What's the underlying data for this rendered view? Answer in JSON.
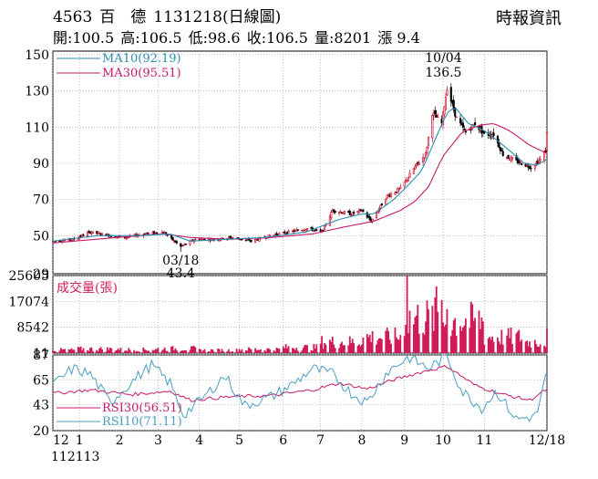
{
  "header": {
    "stock_code": "4563",
    "stock_name": "百　德",
    "chart_date_label": "1131218(日線圖)",
    "publisher": "時報資訊",
    "quote": {
      "open": "開:100.5",
      "high": "高:106.5",
      "low": "低:98.6",
      "close": "收:106.5",
      "volume": "量:8201",
      "change": "漲 9.4"
    }
  },
  "colors": {
    "up": "#d01030",
    "down": "#000000",
    "ma10": "#2a8fb0",
    "ma30": "#c8186a",
    "rsi30": "#c8186a",
    "rsi10": "#4a9fc0",
    "volume": "#d01a5a",
    "grid": "#999999"
  },
  "chart_data": [
    {
      "type": "candlestick",
      "panel": "price",
      "ylim": [
        29,
        152
      ],
      "yticks": [
        "150",
        "130",
        "110",
        "90",
        "70",
        "50",
        "29"
      ],
      "ytick_values": [
        150,
        130,
        110,
        90,
        70,
        50,
        29
      ],
      "legend": [
        {
          "label": "MA10(92.19)",
          "color": "#2a8fb0"
        },
        {
          "label": "MA30(95.51)",
          "color": "#c8186a"
        }
      ],
      "annotations": [
        {
          "date_label": "10/04",
          "value_label": "136.5",
          "value": 136.5,
          "period": "2024-10-04"
        },
        {
          "date_label": "03/18",
          "value_label": "43.4",
          "value": 43.4,
          "period": "2024-03-18"
        }
      ],
      "price_path": [
        [
          "2023-12-13",
          47
        ],
        [
          "2023-12-28",
          48
        ],
        [
          "2024-01-10",
          52
        ],
        [
          "2024-01-25",
          50
        ],
        [
          "2024-02-05",
          49
        ],
        [
          "2024-02-20",
          51
        ],
        [
          "2024-03-05",
          52
        ],
        [
          "2024-03-18",
          44
        ],
        [
          "2024-03-29",
          48
        ],
        [
          "2024-04-12",
          48
        ],
        [
          "2024-04-26",
          49
        ],
        [
          "2024-05-10",
          47
        ],
        [
          "2024-05-24",
          50
        ],
        [
          "2024-06-07",
          52
        ],
        [
          "2024-06-21",
          54
        ],
        [
          "2024-07-02",
          52
        ],
        [
          "2024-07-10",
          64
        ],
        [
          "2024-07-24",
          62
        ],
        [
          "2024-08-01",
          64
        ],
        [
          "2024-08-08",
          58
        ],
        [
          "2024-08-20",
          72
        ],
        [
          "2024-08-30",
          76
        ],
        [
          "2024-09-10",
          88
        ],
        [
          "2024-09-18",
          95
        ],
        [
          "2024-09-23",
          118
        ],
        [
          "2024-09-30",
          112
        ],
        [
          "2024-10-04",
          132
        ],
        [
          "2024-10-11",
          115
        ],
        [
          "2024-10-18",
          107
        ],
        [
          "2024-10-25",
          112
        ],
        [
          "2024-11-01",
          106
        ],
        [
          "2024-11-08",
          106
        ],
        [
          "2024-11-15",
          95
        ],
        [
          "2024-11-22",
          92
        ],
        [
          "2024-11-29",
          90
        ],
        [
          "2024-12-06",
          88
        ],
        [
          "2024-12-13",
          92
        ],
        [
          "2024-12-17",
          97
        ],
        [
          "2024-12-18",
          106.5
        ]
      ],
      "ma10_path": [
        [
          "2023-12-13",
          47
        ],
        [
          "2024-01-15",
          50
        ],
        [
          "2024-02-15",
          50
        ],
        [
          "2024-03-10",
          51
        ],
        [
          "2024-03-25",
          47
        ],
        [
          "2024-04-20",
          48
        ],
        [
          "2024-05-20",
          49
        ],
        [
          "2024-06-20",
          52
        ],
        [
          "2024-07-15",
          59
        ],
        [
          "2024-08-01",
          62
        ],
        [
          "2024-08-10",
          62
        ],
        [
          "2024-08-25",
          70
        ],
        [
          "2024-09-05",
          78
        ],
        [
          "2024-09-15",
          86
        ],
        [
          "2024-09-25",
          103
        ],
        [
          "2024-10-04",
          118
        ],
        [
          "2024-10-10",
          121
        ],
        [
          "2024-10-20",
          112
        ],
        [
          "2024-11-01",
          108
        ],
        [
          "2024-11-10",
          103
        ],
        [
          "2024-11-20",
          97
        ],
        [
          "2024-12-01",
          90
        ],
        [
          "2024-12-10",
          89
        ],
        [
          "2024-12-18",
          92.19
        ]
      ],
      "ma30_path": [
        [
          "2023-12-13",
          46
        ],
        [
          "2024-01-30",
          49
        ],
        [
          "2024-03-05",
          51
        ],
        [
          "2024-03-25",
          49
        ],
        [
          "2024-04-25",
          48
        ],
        [
          "2024-05-25",
          49
        ],
        [
          "2024-06-25",
          51
        ],
        [
          "2024-07-20",
          55
        ],
        [
          "2024-08-10",
          58
        ],
        [
          "2024-08-30",
          64
        ],
        [
          "2024-09-10",
          69
        ],
        [
          "2024-09-20",
          77
        ],
        [
          "2024-10-01",
          94
        ],
        [
          "2024-10-15",
          107
        ],
        [
          "2024-10-28",
          111
        ],
        [
          "2024-11-08",
          112
        ],
        [
          "2024-11-20",
          108
        ],
        [
          "2024-12-05",
          100
        ],
        [
          "2024-12-18",
          95.51
        ]
      ]
    },
    {
      "type": "bar",
      "panel": "volume",
      "title": "成交量(張)",
      "ylim": [
        0,
        25605
      ],
      "yticks": [
        "25605",
        "17074",
        "8542",
        "11"
      ],
      "ytick_values": [
        25605,
        17074,
        8542,
        11
      ],
      "periods": [
        "2023-12",
        "2024-01",
        "2024-02",
        "2024-03",
        "2024-04",
        "2024-05",
        "2024-06",
        "2024-07",
        "2024-08",
        "2024-09",
        "2024-10",
        "2024-11",
        "2024-12"
      ],
      "typical_volume": [
        1000,
        1300,
        1100,
        1400,
        900,
        1200,
        1800,
        3500,
        5000,
        11000,
        10000,
        5000,
        3500
      ],
      "peaks": [
        {
          "date": "2024-09-04",
          "value": 25605
        },
        {
          "date": "2024-09-26",
          "value": 22000
        },
        {
          "date": "2024-09-30",
          "value": 17500
        },
        {
          "date": "2024-10-04",
          "value": 14500
        },
        {
          "date": "2024-12-18",
          "value": 8201
        }
      ]
    },
    {
      "type": "line",
      "panel": "rsi",
      "ylim": [
        20,
        87
      ],
      "yticks": [
        "87",
        "65",
        "43",
        "20"
      ],
      "ytick_values": [
        87,
        65,
        43,
        20
      ],
      "series": [
        {
          "name": "RSI30(56.51)",
          "color": "#c8186a",
          "values": [
            [
              "2023-12-13",
              53
            ],
            [
              "2024-01-10",
              56
            ],
            [
              "2024-02-10",
              52
            ],
            [
              "2024-03-10",
              55
            ],
            [
              "2024-03-25",
              47
            ],
            [
              "2024-04-25",
              50
            ],
            [
              "2024-05-25",
              51
            ],
            [
              "2024-06-25",
              56
            ],
            [
              "2024-07-15",
              62
            ],
            [
              "2024-08-05",
              57
            ],
            [
              "2024-08-25",
              65
            ],
            [
              "2024-09-15",
              72
            ],
            [
              "2024-10-04",
              77
            ],
            [
              "2024-10-25",
              60
            ],
            [
              "2024-11-15",
              52
            ],
            [
              "2024-12-05",
              47
            ],
            [
              "2024-12-18",
              56.51
            ]
          ]
        },
        {
          "name": "RSI10(71.11)",
          "color": "#4a9fc0",
          "values": [
            [
              "2023-12-13",
              60
            ],
            [
              "2023-12-28",
              75
            ],
            [
              "2024-01-10",
              70
            ],
            [
              "2024-01-25",
              45
            ],
            [
              "2024-02-10",
              63
            ],
            [
              "2024-02-25",
              78
            ],
            [
              "2024-03-10",
              62
            ],
            [
              "2024-03-20",
              34
            ],
            [
              "2024-04-05",
              50
            ],
            [
              "2024-04-20",
              69
            ],
            [
              "2024-05-05",
              42
            ],
            [
              "2024-05-25",
              50
            ],
            [
              "2024-06-10",
              61
            ],
            [
              "2024-06-25",
              75
            ],
            [
              "2024-07-10",
              70
            ],
            [
              "2024-07-25",
              52
            ],
            [
              "2024-08-05",
              45
            ],
            [
              "2024-08-20",
              72
            ],
            [
              "2024-09-05",
              85
            ],
            [
              "2024-09-20",
              75
            ],
            [
              "2024-10-04",
              86
            ],
            [
              "2024-10-15",
              55
            ],
            [
              "2024-10-30",
              40
            ],
            [
              "2024-11-10",
              55
            ],
            [
              "2024-11-25",
              30
            ],
            [
              "2024-12-10",
              33
            ],
            [
              "2024-12-18",
              71.11
            ]
          ]
        }
      ]
    }
  ],
  "x_axis": {
    "ticks": [
      {
        "label": "12",
        "date": "2023-12-13"
      },
      {
        "label": "1",
        "date": "2024-01-02"
      },
      {
        "label": "2",
        "date": "2024-02-01"
      },
      {
        "label": "3",
        "date": "2024-03-01"
      },
      {
        "label": "4",
        "date": "2024-04-01"
      },
      {
        "label": "5",
        "date": "2024-05-01"
      },
      {
        "label": "6",
        "date": "2024-06-03"
      },
      {
        "label": "7",
        "date": "2024-07-01"
      },
      {
        "label": "8",
        "date": "2024-08-01"
      },
      {
        "label": "9",
        "date": "2024-09-02"
      },
      {
        "label": "10",
        "date": "2024-10-01"
      },
      {
        "label": "11",
        "date": "2024-11-01"
      },
      {
        "label": "12/18",
        "date": "2024-12-18"
      }
    ],
    "start_label": "112113"
  }
}
